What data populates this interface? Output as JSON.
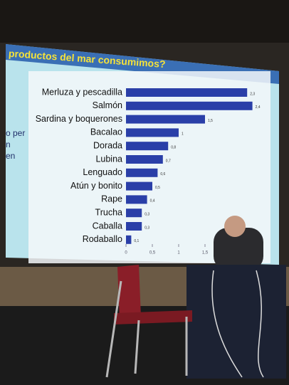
{
  "chart_data": {
    "type": "bar",
    "orientation": "horizontal",
    "title": "productos del mar consumimos?",
    "side_text": [
      "o per",
      "n",
      "en"
    ],
    "categories": [
      "Merluza y pescadilla",
      "Salmón",
      "Sardina y boquerones",
      "Bacalao",
      "Dorada",
      "Lubina",
      "Lenguado",
      "Atún y bonito",
      "Rape",
      "Trucha",
      "Caballa",
      "Rodaballo"
    ],
    "values": [
      2.3,
      2.4,
      1.5,
      1,
      0.8,
      0.7,
      0.6,
      0.5,
      0.4,
      0.3,
      0.3,
      0.1
    ],
    "value_labels": [
      "2,3",
      "2,4",
      "1,5",
      "1",
      "0,8",
      "0,7",
      "0,6",
      "0,5",
      "0,4",
      "0,3",
      "0,3",
      "0,1"
    ],
    "color": "#2a3fa8",
    "xlim": [
      0,
      2.5
    ],
    "xticks": [
      0,
      {
        "value": 0.5,
        "label": "0,5"
      },
      1,
      {
        "value": 1.5,
        "label": "1,5"
      }
    ]
  }
}
